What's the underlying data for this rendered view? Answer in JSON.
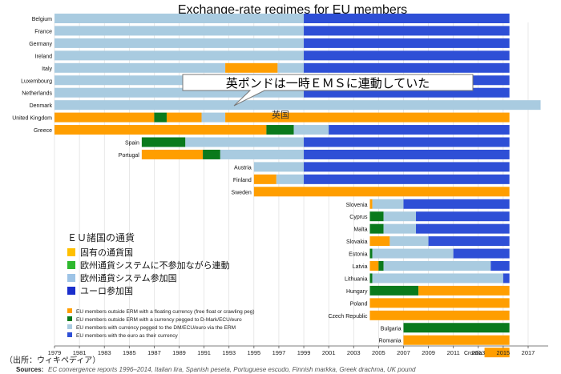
{
  "chart_data": {
    "type": "timeline",
    "title": "Exchange-rate regimes for EU members",
    "x_axis": {
      "min": 1979,
      "max": 2018,
      "ticks": [
        1979,
        1981,
        1983,
        1985,
        1987,
        1989,
        1991,
        1993,
        1995,
        1997,
        1999,
        2001,
        2003,
        2005,
        2007,
        2009,
        2011,
        2013,
        2015,
        2017
      ]
    },
    "regimes": {
      "float": {
        "color": "#ff9e00",
        "label": "EU members outside ERM with a floating currency (free float or crawling peg)"
      },
      "peg_outside": {
        "color": "#0a7a1c",
        "label": "EU members outside ERM with a currency pegged to D-Mark/ECU/euro"
      },
      "erm": {
        "color": "#a9cbe0",
        "label": "EU members with currency pegged to the DM/ECU/euro via the ERM"
      },
      "euro": {
        "color": "#2e4fd6",
        "label": "EU members with the euro as their currency"
      }
    },
    "rows": [
      {
        "country": "Belgium",
        "segments": [
          {
            "regime": "erm",
            "start": 1979,
            "end": 1999
          },
          {
            "regime": "euro",
            "start": 1999,
            "end": 2015.5
          }
        ]
      },
      {
        "country": "France",
        "segments": [
          {
            "regime": "erm",
            "start": 1979,
            "end": 1999
          },
          {
            "regime": "euro",
            "start": 1999,
            "end": 2015.5
          }
        ]
      },
      {
        "country": "Germany",
        "segments": [
          {
            "regime": "erm",
            "start": 1979,
            "end": 1999
          },
          {
            "regime": "euro",
            "start": 1999,
            "end": 2015.5
          }
        ]
      },
      {
        "country": "Ireland",
        "segments": [
          {
            "regime": "erm",
            "start": 1979,
            "end": 1999
          },
          {
            "regime": "euro",
            "start": 1999,
            "end": 2015.5
          }
        ]
      },
      {
        "country": "Italy",
        "segments": [
          {
            "regime": "erm",
            "start": 1979,
            "end": 1992.7
          },
          {
            "regime": "float",
            "start": 1992.7,
            "end": 1996.9
          },
          {
            "regime": "erm",
            "start": 1996.9,
            "end": 1999
          },
          {
            "regime": "euro",
            "start": 1999,
            "end": 2015.5
          }
        ]
      },
      {
        "country": "Luxembourg",
        "segments": [
          {
            "regime": "erm",
            "start": 1979,
            "end": 1999
          },
          {
            "regime": "euro",
            "start": 1999,
            "end": 2015.5
          }
        ]
      },
      {
        "country": "Netherlands",
        "segments": [
          {
            "regime": "erm",
            "start": 1979,
            "end": 1999
          },
          {
            "regime": "euro",
            "start": 1999,
            "end": 2015.5
          }
        ]
      },
      {
        "country": "Denmark",
        "segments": [
          {
            "regime": "erm",
            "start": 1979,
            "end": 2018
          }
        ]
      },
      {
        "country": "United Kingdom",
        "segments": [
          {
            "regime": "float",
            "start": 1979,
            "end": 1987
          },
          {
            "regime": "peg_outside",
            "start": 1987,
            "end": 1988
          },
          {
            "regime": "float",
            "start": 1988,
            "end": 1990.8
          },
          {
            "regime": "erm",
            "start": 1990.8,
            "end": 1992.7
          },
          {
            "regime": "float",
            "start": 1992.7,
            "end": 2015.5
          }
        ]
      },
      {
        "country": "Greece",
        "segments": [
          {
            "regime": "float",
            "start": 1979,
            "end": 1996
          },
          {
            "regime": "peg_outside",
            "start": 1996,
            "end": 1998.2
          },
          {
            "regime": "erm",
            "start": 1998.2,
            "end": 2001
          },
          {
            "regime": "euro",
            "start": 2001,
            "end": 2015.5
          }
        ]
      },
      {
        "country": "Spain",
        "segments": [
          {
            "regime": "peg_outside",
            "start": 1986,
            "end": 1989.5
          },
          {
            "regime": "erm",
            "start": 1989.5,
            "end": 1999
          },
          {
            "regime": "euro",
            "start": 1999,
            "end": 2015.5
          }
        ]
      },
      {
        "country": "Portugal",
        "segments": [
          {
            "regime": "float",
            "start": 1986,
            "end": 1990.9
          },
          {
            "regime": "peg_outside",
            "start": 1990.9,
            "end": 1992.3
          },
          {
            "regime": "erm",
            "start": 1992.3,
            "end": 1999
          },
          {
            "regime": "euro",
            "start": 1999,
            "end": 2015.5
          }
        ]
      },
      {
        "country": "Austria",
        "segments": [
          {
            "regime": "erm",
            "start": 1995,
            "end": 1999
          },
          {
            "regime": "euro",
            "start": 1999,
            "end": 2015.5
          }
        ]
      },
      {
        "country": "Finland",
        "segments": [
          {
            "regime": "float",
            "start": 1995,
            "end": 1996.8
          },
          {
            "regime": "erm",
            "start": 1996.8,
            "end": 1999
          },
          {
            "regime": "euro",
            "start": 1999,
            "end": 2015.5
          }
        ]
      },
      {
        "country": "Sweden",
        "segments": [
          {
            "regime": "float",
            "start": 1995,
            "end": 2015.5
          }
        ]
      },
      {
        "country": "Slovenia",
        "segments": [
          {
            "regime": "float",
            "start": 2004.3,
            "end": 2004.5
          },
          {
            "regime": "erm",
            "start": 2004.5,
            "end": 2007
          },
          {
            "regime": "euro",
            "start": 2007,
            "end": 2015.5
          }
        ]
      },
      {
        "country": "Cyprus",
        "segments": [
          {
            "regime": "peg_outside",
            "start": 2004.3,
            "end": 2005.4
          },
          {
            "regime": "erm",
            "start": 2005.4,
            "end": 2008
          },
          {
            "regime": "euro",
            "start": 2008,
            "end": 2015.5
          }
        ]
      },
      {
        "country": "Malta",
        "segments": [
          {
            "regime": "peg_outside",
            "start": 2004.3,
            "end": 2005.4
          },
          {
            "regime": "erm",
            "start": 2005.4,
            "end": 2008
          },
          {
            "regime": "euro",
            "start": 2008,
            "end": 2015.5
          }
        ]
      },
      {
        "country": "Slovakia",
        "segments": [
          {
            "regime": "float",
            "start": 2004.3,
            "end": 2005.9
          },
          {
            "regime": "erm",
            "start": 2005.9,
            "end": 2009
          },
          {
            "regime": "euro",
            "start": 2009,
            "end": 2015.5
          }
        ]
      },
      {
        "country": "Estonia",
        "segments": [
          {
            "regime": "peg_outside",
            "start": 2004.3,
            "end": 2004.5
          },
          {
            "regime": "erm",
            "start": 2004.5,
            "end": 2011
          },
          {
            "regime": "euro",
            "start": 2011,
            "end": 2015.5
          }
        ]
      },
      {
        "country": "Latvia",
        "segments": [
          {
            "regime": "float",
            "start": 2004.3,
            "end": 2005
          },
          {
            "regime": "peg_outside",
            "start": 2005,
            "end": 2005.4
          },
          {
            "regime": "erm",
            "start": 2005.4,
            "end": 2014
          },
          {
            "regime": "euro",
            "start": 2014,
            "end": 2015.5
          }
        ]
      },
      {
        "country": "Lithuania",
        "segments": [
          {
            "regime": "peg_outside",
            "start": 2004.3,
            "end": 2004.5
          },
          {
            "regime": "erm",
            "start": 2004.5,
            "end": 2015
          },
          {
            "regime": "euro",
            "start": 2015,
            "end": 2015.5
          }
        ]
      },
      {
        "country": "Hungary",
        "segments": [
          {
            "regime": "peg_outside",
            "start": 2004.3,
            "end": 2008.2
          },
          {
            "regime": "float",
            "start": 2008.2,
            "end": 2015.5
          }
        ]
      },
      {
        "country": "Poland",
        "segments": [
          {
            "regime": "float",
            "start": 2004.3,
            "end": 2015.5
          }
        ]
      },
      {
        "country": "Czech Republic",
        "segments": [
          {
            "regime": "float",
            "start": 2004.3,
            "end": 2015.5
          }
        ]
      },
      {
        "country": "Bulgaria",
        "segments": [
          {
            "regime": "peg_outside",
            "start": 2007,
            "end": 2015.5
          }
        ]
      },
      {
        "country": "Romania",
        "segments": [
          {
            "regime": "float",
            "start": 2007,
            "end": 2015.5
          }
        ]
      },
      {
        "country": "Croatia",
        "segments": [
          {
            "regime": "float",
            "start": 2013.5,
            "end": 2015.5
          }
        ]
      }
    ],
    "annotations": {
      "callout": "英ポンドは一時ＥＭＳに連動していた",
      "uk_label": "英国"
    },
    "jp_legend": {
      "title": "ＥＵ諸国の通貨",
      "items": [
        {
          "label": "固有の通貨国",
          "color": "#ffc000"
        },
        {
          "label": "欧州通貨システムに不参加ながら連動",
          "color": "#2eb82e"
        },
        {
          "label": "欧州通貨システム参加国",
          "color": "#9dc3e6"
        },
        {
          "label": "ユーロ参加国",
          "color": "#1a2ecc"
        }
      ]
    },
    "en_legend_order": [
      "float",
      "peg_outside",
      "erm",
      "euro"
    ],
    "source_jp": "（出所：ウィキペディア）",
    "sources_label": "Sources:",
    "sources_text": "EC convergence reports 1996–2014, Italian lira, Spanish peseta, Portuguese escudo, Finnish markka, Greek drachma, UK pound"
  }
}
